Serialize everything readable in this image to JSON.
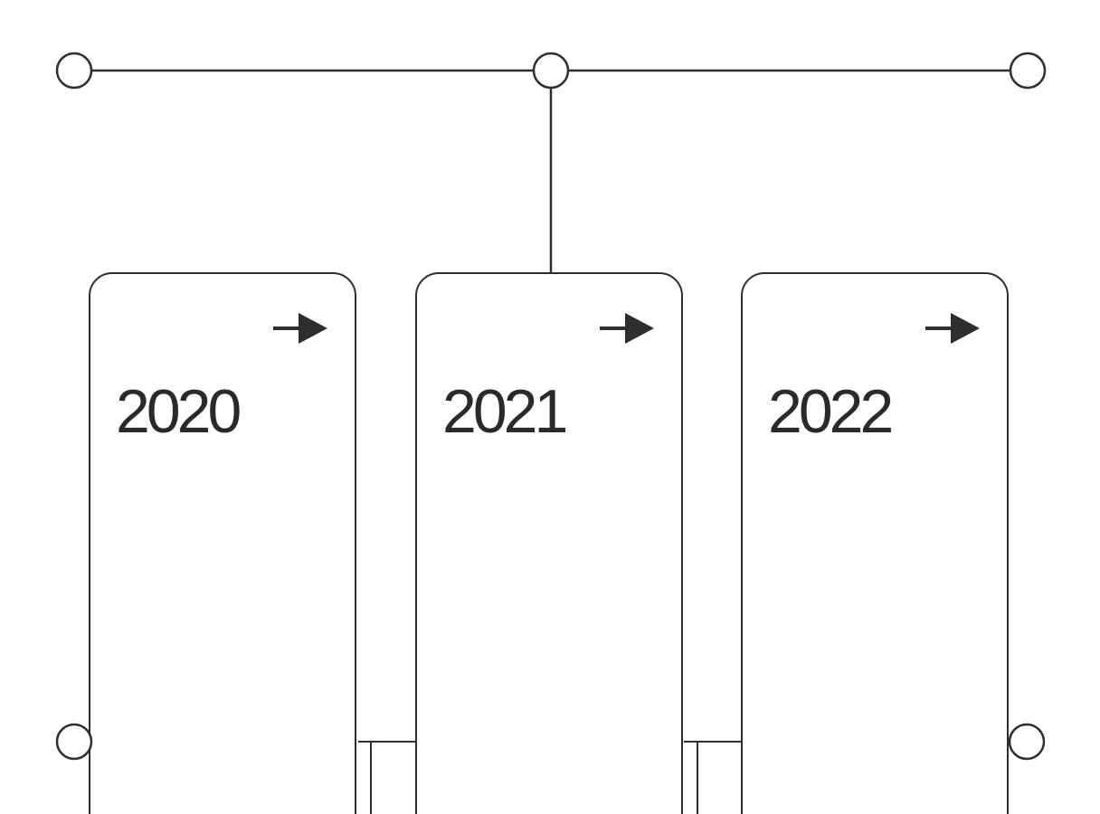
{
  "timeline": {
    "cards": [
      {
        "year": "2020",
        "icon": "arrow-right-icon"
      },
      {
        "year": "2021",
        "icon": "arrow-right-icon"
      },
      {
        "year": "2022",
        "icon": "arrow-right-icon"
      }
    ]
  },
  "colors": {
    "stroke": "#2e2e2e",
    "text": "#2a2a2a",
    "background": "#ffffff"
  }
}
